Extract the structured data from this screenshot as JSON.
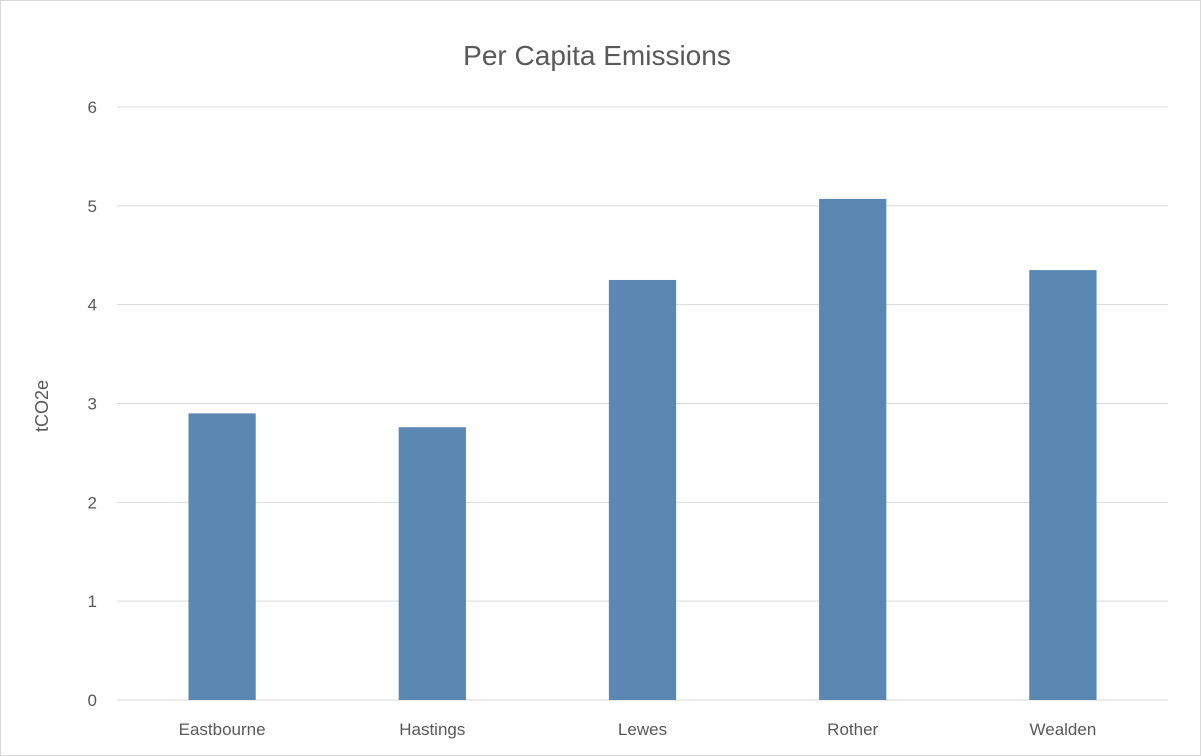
{
  "chart_data": {
    "type": "bar",
    "title": "Per Capita Emissions",
    "xlabel": "",
    "ylabel": "tCO2e",
    "categories": [
      "Eastbourne",
      "Hastings",
      "Lewes",
      "Rother",
      "Wealden"
    ],
    "values": [
      2.9,
      2.76,
      4.25,
      5.07,
      4.35
    ],
    "ylim": [
      0,
      6
    ],
    "yticks": [
      "0",
      "1",
      "2",
      "3",
      "4",
      "5",
      "6"
    ],
    "grid": true,
    "legend": "none",
    "colors": {
      "bar": "#5b87b3",
      "grid": "#d9d9d9",
      "text": "#595959"
    }
  }
}
